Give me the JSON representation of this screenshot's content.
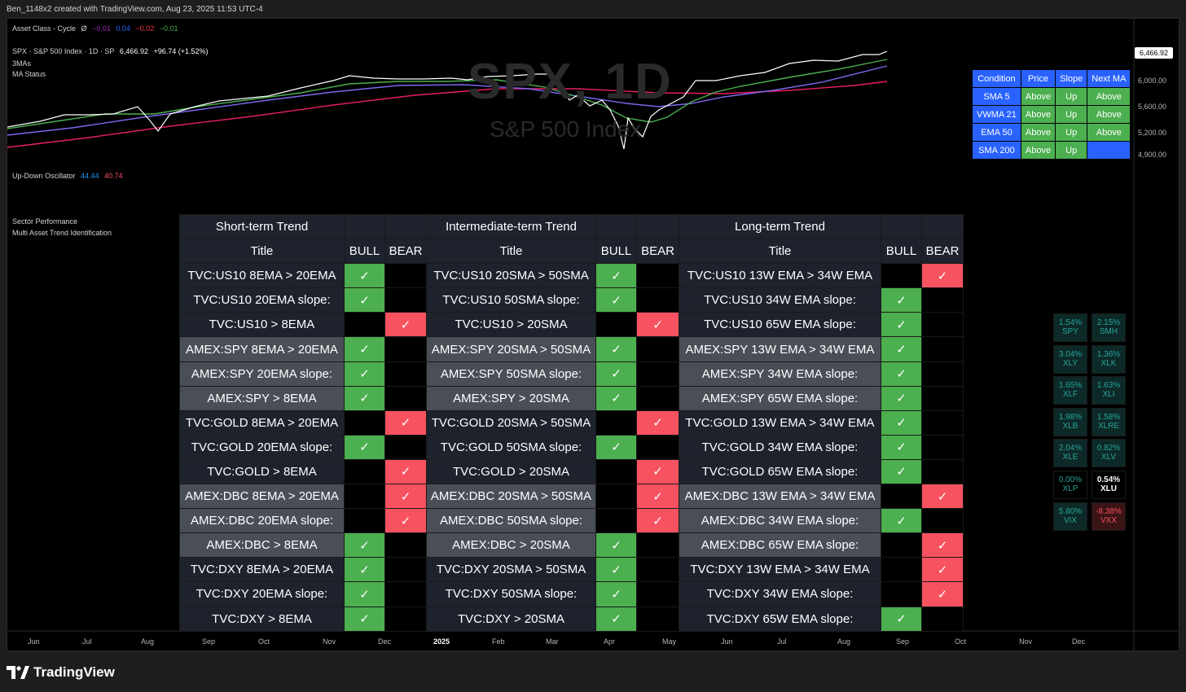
{
  "header": {
    "caption": "Ben_1148x2 created with TradingView.com, Aug 23, 2025 11:53 UTC-4"
  },
  "legends": {
    "cycle_label": "Asset Class - Cycle",
    "cycle_sym": "Ø",
    "cycle_vals": [
      "−0.01",
      "0.04",
      "−0.02",
      "−0.01"
    ],
    "symbol_line": "SPX · S&P 500 Index · 1D · SP",
    "symbol_price": "6,466.92",
    "symbol_change": "+96.74 (+1.52%)",
    "mas_label": "3MAs",
    "ma_status_label": "MA Status",
    "osc_label": "Up-Down Oscillator",
    "osc_up": "44.44",
    "osc_down": "40.74",
    "sector_label": "Sector Performance",
    "multi_label": "Multi Asset Trend Identification"
  },
  "watermark": {
    "title": "SPX, 1D",
    "subtitle": "S&P 500 Index"
  },
  "price_axis": {
    "current": "6,466.92",
    "ticks": [
      "6,000.00",
      "5,600.00",
      "5,200.00",
      "4,900.00"
    ]
  },
  "time_axis": [
    "Jun",
    "Jul",
    "Aug",
    "Sep",
    "Oct",
    "Nov",
    "Dec",
    "2025",
    "Feb",
    "Mar",
    "Apr",
    "May",
    "Jun",
    "Jul",
    "Aug",
    "Sep",
    "Oct",
    "Nov",
    "Dec"
  ],
  "ma_table": {
    "headers": [
      "Condition",
      "Price",
      "Slope",
      "Next MA"
    ],
    "rows": [
      {
        "cond": "SMA 5",
        "price": "Above",
        "slope": "Up",
        "next": "Above"
      },
      {
        "cond": "VWMA 21",
        "price": "Above",
        "slope": "Up",
        "next": "Above"
      },
      {
        "cond": "EMA 50",
        "price": "Above",
        "slope": "Up",
        "next": "Above"
      },
      {
        "cond": "SMA 200",
        "price": "Above",
        "slope": "Up",
        "next": ""
      }
    ]
  },
  "trend_table": {
    "groups": [
      "Short-term Trend",
      "Intermediate-term Trend",
      "Long-term Trend"
    ],
    "col_title": "Title",
    "col_bull": "BULL",
    "col_bear": "BEAR",
    "check": "✓",
    "rows": [
      {
        "shade": "dark",
        "s": "TVC:US10 8EMA > 20EMA",
        "sv": "bull",
        "i": "TVC:US10 20SMA > 50SMA",
        "iv": "bull",
        "l": "TVC:US10 13W EMA > 34W EMA",
        "lv": "bear"
      },
      {
        "shade": "dark",
        "s": "TVC:US10 20EMA slope:",
        "sv": "bull",
        "i": "TVC:US10 50SMA slope:",
        "iv": "bull",
        "l": "TVC:US10 34W EMA slope:",
        "lv": "bull"
      },
      {
        "shade": "dark",
        "s": "TVC:US10 > 8EMA",
        "sv": "bear",
        "i": "TVC:US10 > 20SMA",
        "iv": "bear",
        "l": "TVC:US10 65W EMA slope:",
        "lv": "bull"
      },
      {
        "shade": "grey",
        "s": "AMEX:SPY 8EMA > 20EMA",
        "sv": "bull",
        "i": "AMEX:SPY 20SMA > 50SMA",
        "iv": "bull",
        "l": "AMEX:SPY 13W EMA > 34W EMA",
        "lv": "bull"
      },
      {
        "shade": "grey",
        "s": "AMEX:SPY 20EMA slope:",
        "sv": "bull",
        "i": "AMEX:SPY 50SMA slope:",
        "iv": "bull",
        "l": "AMEX:SPY 34W EMA slope:",
        "lv": "bull"
      },
      {
        "shade": "grey",
        "s": "AMEX:SPY > 8EMA",
        "sv": "bull",
        "i": "AMEX:SPY > 20SMA",
        "iv": "bull",
        "l": "AMEX:SPY 65W EMA slope:",
        "lv": "bull"
      },
      {
        "shade": "dark",
        "s": "TVC:GOLD 8EMA > 20EMA",
        "sv": "bear",
        "i": "TVC:GOLD 20SMA > 50SMA",
        "iv": "bear",
        "l": "TVC:GOLD 13W EMA > 34W EMA",
        "lv": "bull"
      },
      {
        "shade": "dark",
        "s": "TVC:GOLD 20EMA slope:",
        "sv": "bull",
        "i": "TVC:GOLD 50SMA slope:",
        "iv": "bull",
        "l": "TVC:GOLD 34W EMA slope:",
        "lv": "bull"
      },
      {
        "shade": "dark",
        "s": "TVC:GOLD > 8EMA",
        "sv": "bear",
        "i": "TVC:GOLD > 20SMA",
        "iv": "bear",
        "l": "TVC:GOLD 65W EMA slope:",
        "lv": "bull"
      },
      {
        "shade": "grey",
        "s": "AMEX:DBC 8EMA > 20EMA",
        "sv": "bear",
        "i": "AMEX:DBC 20SMA > 50SMA",
        "iv": "bear",
        "l": "AMEX:DBC 13W EMA > 34W EMA",
        "lv": "bear"
      },
      {
        "shade": "grey",
        "s": "AMEX:DBC 20EMA slope:",
        "sv": "bear",
        "i": "AMEX:DBC 50SMA slope:",
        "iv": "bear",
        "l": "AMEX:DBC 34W EMA slope:",
        "lv": "bull"
      },
      {
        "shade": "grey",
        "s": "AMEX:DBC > 8EMA",
        "sv": "bull",
        "i": "AMEX:DBC > 20SMA",
        "iv": "bull",
        "l": "AMEX:DBC 65W EMA slope:",
        "lv": "bear"
      },
      {
        "shade": "dark",
        "s": "TVC:DXY 8EMA > 20EMA",
        "sv": "bull",
        "i": "TVC:DXY 20SMA > 50SMA",
        "iv": "bull",
        "l": "TVC:DXY 13W EMA > 34W EMA",
        "lv": "bear"
      },
      {
        "shade": "dark",
        "s": "TVC:DXY 20EMA slope:",
        "sv": "bull",
        "i": "TVC:DXY 50SMA slope:",
        "iv": "bull",
        "l": "TVC:DXY 34W EMA slope:",
        "lv": "bear"
      },
      {
        "shade": "dark",
        "s": "TVC:DXY > 8EMA",
        "sv": "bull",
        "i": "TVC:DXY > 20SMA",
        "iv": "bull",
        "l": "TVC:DXY 65W EMA slope:",
        "lv": "bull"
      }
    ]
  },
  "sectors": [
    [
      {
        "pct": "1.54%",
        "sym": "SPY",
        "tone": "pos"
      },
      {
        "pct": "2.15%",
        "sym": "SMH",
        "tone": "pos"
      }
    ],
    [
      {
        "pct": "3.04%",
        "sym": "XLY",
        "tone": "pos"
      },
      {
        "pct": "1.36%",
        "sym": "XLK",
        "tone": "pos"
      }
    ],
    [
      {
        "pct": "1.65%",
        "sym": "XLF",
        "tone": "pos"
      },
      {
        "pct": "1.63%",
        "sym": "XLI",
        "tone": "pos"
      }
    ],
    [
      {
        "pct": "1.98%",
        "sym": "XLB",
        "tone": "pos"
      },
      {
        "pct": "1.58%",
        "sym": "XLRE",
        "tone": "pos"
      }
    ],
    [
      {
        "pct": "2.04%",
        "sym": "XLE",
        "tone": "pos"
      },
      {
        "pct": "0.82%",
        "sym": "XLV",
        "tone": "pos"
      }
    ],
    [
      {
        "pct": "0.00%",
        "sym": "XLP",
        "tone": "flat"
      },
      {
        "pct": "0.54%",
        "sym": "XLU",
        "tone": "white"
      }
    ],
    [
      {
        "pct": "5.80%",
        "sym": "VIX",
        "tone": "pos"
      },
      {
        "pct": "-8.38%",
        "sym": "VXX",
        "tone": "neg"
      }
    ]
  ],
  "colors": {
    "bull": "#4caf50",
    "bear": "#f7525f",
    "price_line": "#ffffff",
    "ma_green": "#4caf50",
    "ma_purple": "#7b68ee",
    "ma_red": "#e91e63",
    "accent_blue": "#2962ff"
  },
  "brand": {
    "name": "TradingView"
  }
}
